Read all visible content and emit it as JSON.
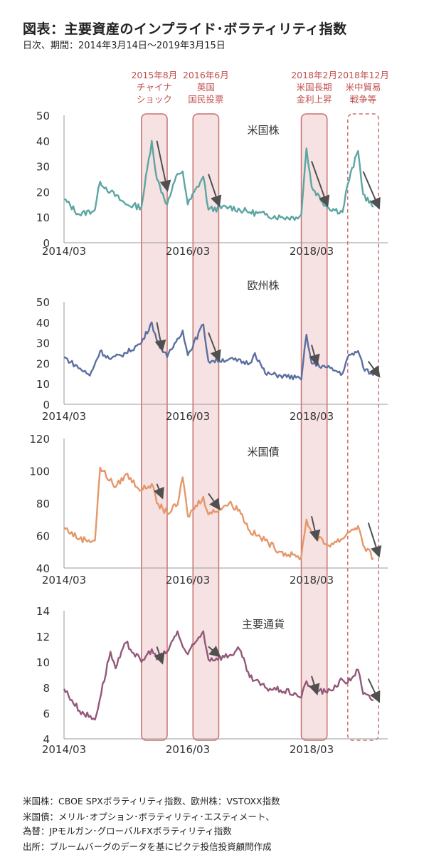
{
  "title": "図表：主要資産のインプライド･ボラティリティ指数",
  "subtitle": "日次、期間：2014年3月14日～2019年3月15日",
  "colors": {
    "band_fill": "#f6e2e2",
    "band_stroke": "#c97070",
    "event_text": "#c0504d",
    "arrow": "#505050",
    "axis": "#9a9a9a"
  },
  "events": [
    {
      "label1": "2015年8月",
      "label2": "チャイナ",
      "label3": "ショック",
      "start": "2015-06",
      "end": "2015-11",
      "style": "solid"
    },
    {
      "label1": "2016年6月",
      "label2": "英国",
      "label3": "国民投票",
      "start": "2016-04",
      "end": "2016-09",
      "style": "solid"
    },
    {
      "label1": "2018年2月",
      "label2": "米国長期",
      "label3": "金利上昇",
      "start": "2018-01",
      "end": "2018-06",
      "style": "solid"
    },
    {
      "label1": "2018年12月",
      "label2": "米中貿易",
      "label3": "戦争等",
      "start": "2018-10",
      "end": "2019-04",
      "style": "dashed"
    }
  ],
  "chart_data": [
    {
      "type": "line",
      "title": "米国株",
      "color": "#5ba6a3",
      "ylim": [
        0,
        50
      ],
      "yticks": [
        "0",
        "10",
        "20",
        "30",
        "40",
        "50"
      ],
      "xticks": [
        "2014/03",
        "2016/03",
        "2018/03"
      ],
      "x": [
        "2014-03",
        "2014-06",
        "2014-09",
        "2014-10",
        "2014-12",
        "2015-03",
        "2015-06",
        "2015-08",
        "2015-09",
        "2015-11",
        "2016-01",
        "2016-02",
        "2016-03",
        "2016-06",
        "2016-07",
        "2016-11",
        "2017-03",
        "2017-06",
        "2017-09",
        "2017-12",
        "2018-01",
        "2018-02",
        "2018-03",
        "2018-06",
        "2018-09",
        "2018-10",
        "2018-12",
        "2019-01",
        "2019-03"
      ],
      "values": [
        17,
        11,
        13,
        24,
        20,
        15,
        14,
        40,
        25,
        15,
        27,
        28,
        15,
        26,
        13,
        14,
        12,
        11,
        10,
        10,
        11,
        37,
        22,
        14,
        12,
        23,
        36,
        19,
        14
      ]
    },
    {
      "type": "line",
      "title": "欧州株",
      "color": "#5b6fa0",
      "ylim": [
        0,
        50
      ],
      "yticks": [
        "0",
        "10",
        "20",
        "30",
        "40",
        "50"
      ],
      "xticks": [
        "2014/03",
        "2016/03",
        "2018/03"
      ],
      "x": [
        "2014-03",
        "2014-08",
        "2014-10",
        "2014-12",
        "2015-03",
        "2015-06",
        "2015-08",
        "2015-09",
        "2015-11",
        "2016-01",
        "2016-02",
        "2016-03",
        "2016-06",
        "2016-07",
        "2016-11",
        "2017-03",
        "2017-04",
        "2017-06",
        "2017-09",
        "2017-12",
        "2018-01",
        "2018-02",
        "2018-03",
        "2018-06",
        "2018-09",
        "2018-10",
        "2018-12",
        "2019-01",
        "2019-03"
      ],
      "values": [
        23,
        14,
        26,
        22,
        25,
        30,
        40,
        31,
        23,
        32,
        36,
        24,
        39,
        21,
        22,
        20,
        25,
        15,
        14,
        13,
        12,
        34,
        20,
        18,
        15,
        23,
        26,
        18,
        14
      ]
    },
    {
      "type": "line",
      "title": "米国債",
      "color": "#e5976a",
      "ylim": [
        40,
        120
      ],
      "yticks": [
        "40",
        "60",
        "80",
        "100",
        "120"
      ],
      "xticks": [
        "2014/03",
        "2016/03",
        "2018/03"
      ],
      "x": [
        "2014-03",
        "2014-06",
        "2014-09",
        "2014-10",
        "2015-01",
        "2015-03",
        "2015-06",
        "2015-08",
        "2015-09",
        "2015-11",
        "2016-01",
        "2016-02",
        "2016-03",
        "2016-06",
        "2016-07",
        "2016-11",
        "2017-01",
        "2017-03",
        "2017-06",
        "2017-09",
        "2017-12",
        "2018-01",
        "2018-02",
        "2018-03",
        "2018-06",
        "2018-09",
        "2018-10",
        "2018-12",
        "2019-01",
        "2019-03"
      ],
      "values": [
        65,
        58,
        57,
        102,
        90,
        98,
        88,
        92,
        80,
        74,
        79,
        96,
        72,
        84,
        73,
        80,
        76,
        63,
        57,
        50,
        47,
        47,
        70,
        62,
        54,
        58,
        62,
        66,
        54,
        46
      ]
    },
    {
      "type": "line",
      "title": "主要通貨",
      "color": "#93577a",
      "ylim": [
        4,
        14
      ],
      "yticks": [
        "4",
        "6",
        "8",
        "10",
        "12",
        "14"
      ],
      "xticks": [
        "2014/03",
        "2016/03",
        "2018/03"
      ],
      "x": [
        "2014-03",
        "2014-06",
        "2014-09",
        "2014-12",
        "2015-01",
        "2015-03",
        "2015-06",
        "2015-08",
        "2015-09",
        "2015-11",
        "2016-01",
        "2016-02",
        "2016-03",
        "2016-06",
        "2016-07",
        "2016-11",
        "2017-01",
        "2017-03",
        "2017-06",
        "2017-09",
        "2017-12",
        "2018-01",
        "2018-02",
        "2018-03",
        "2018-06",
        "2018-09",
        "2018-10",
        "2018-12",
        "2019-01",
        "2019-03"
      ],
      "values": [
        7.9,
        6.2,
        5.5,
        10.8,
        9.5,
        11.5,
        10.0,
        11.0,
        10.2,
        10.8,
        12.4,
        11.2,
        10.6,
        12.4,
        10.2,
        10.5,
        11.0,
        8.8,
        8.0,
        7.8,
        7.5,
        7.2,
        8.5,
        8.0,
        7.6,
        8.6,
        8.4,
        9.4,
        7.5,
        7.0
      ]
    }
  ],
  "notes": [
    "米国株：CBOE SPXボラティリティ指数、欧州株：VSTOXX指数",
    "米国債：メリル･オプション･ボラティリティ･エスティメート、",
    "為替：JPモルガン･グローバルFXボラティリティ指数",
    "出所：ブルームバーグのデータを基にピクテ投信投資顧問作成"
  ]
}
